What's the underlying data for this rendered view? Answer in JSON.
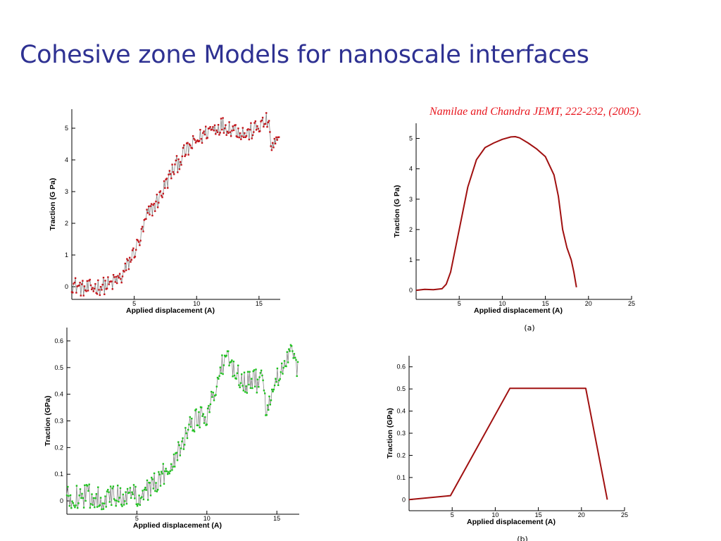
{
  "slide": {
    "title": "Cohesive zone Models for nanoscale interfaces",
    "citation": "Namilae and Chandra JEMT, 222-232, (2005)."
  },
  "colors": {
    "title": "#2e3192",
    "citation": "#e8141c",
    "md_red_series": "#c4161c",
    "md_green_series": "#1fc21f",
    "md_connector": "#888888",
    "model_curve": "#a01010"
  },
  "chart_data": [
    {
      "id": "top-left",
      "type": "scatter",
      "marker_color": "#c4161c",
      "connector_color": "#888888",
      "xlabel": "Applied displacement (A)",
      "ylabel": "Traction (G Pa)",
      "xlim": [
        0,
        16.7
      ],
      "ylim": [
        -0.4,
        5.6
      ],
      "xticks": [
        5,
        10,
        15
      ],
      "yticks": [
        0,
        1,
        2,
        3,
        4,
        5
      ],
      "grid": false,
      "series": [
        {
          "noisy": true,
          "x": [
            0,
            1,
            2,
            3,
            4,
            5,
            5.5,
            6,
            7,
            8,
            9,
            10,
            11,
            12,
            13,
            14,
            15,
            15.7,
            16,
            16.6
          ],
          "values": [
            0.1,
            -0.1,
            0.0,
            0.05,
            0.3,
            1.1,
            1.5,
            2.2,
            2.8,
            3.6,
            4.2,
            4.6,
            4.95,
            5.1,
            5.0,
            4.8,
            5.05,
            5.25,
            4.4,
            4.6
          ],
          "noise_amplitude": 0.28,
          "points": 230
        }
      ]
    },
    {
      "id": "top-right",
      "type": "line",
      "line_color": "#a01010",
      "xlabel": "Applied displacement (A)",
      "ylabel": "Traction (G Pa)",
      "caption": "(a)",
      "xlim": [
        0,
        25
      ],
      "ylim": [
        -0.3,
        5.5
      ],
      "xticks": [
        5,
        10,
        15,
        20,
        25
      ],
      "yticks": [
        0,
        1,
        2,
        3,
        4,
        5
      ],
      "grid": false,
      "series": [
        {
          "x": [
            0,
            1,
            2,
            3,
            3.5,
            4,
            5,
            6,
            7,
            8,
            9,
            10,
            11,
            11.5,
            12,
            13,
            14,
            15,
            16,
            16.5,
            17,
            17.5,
            18,
            18.3,
            18.6
          ],
          "values": [
            0,
            0.03,
            0.02,
            0.05,
            0.2,
            0.6,
            2.0,
            3.4,
            4.3,
            4.7,
            4.85,
            4.97,
            5.05,
            5.06,
            5.02,
            4.85,
            4.65,
            4.4,
            3.8,
            3.1,
            2.0,
            1.4,
            1.0,
            0.6,
            0.1
          ]
        }
      ]
    },
    {
      "id": "bottom-left",
      "type": "scatter",
      "marker_color": "#1fc21f",
      "connector_color": "#888888",
      "xlabel": "Applied displacement (A)",
      "ylabel": "Traction (GPa)",
      "xlim": [
        0,
        16.6
      ],
      "ylim": [
        -0.05,
        0.65
      ],
      "xticks": [
        5,
        10,
        15
      ],
      "yticks": [
        0,
        0.1,
        0.2,
        0.3,
        0.4,
        0.5,
        0.6
      ],
      "grid": false,
      "series": [
        {
          "noisy": true,
          "x": [
            0,
            1,
            2,
            3,
            4,
            5,
            6,
            7,
            7.5,
            8,
            8.5,
            9,
            10,
            10.5,
            11,
            11.5,
            12,
            12.5,
            13,
            14,
            14.2,
            14.5,
            15,
            15.5,
            16,
            16.5
          ],
          "values": [
            0.01,
            0.02,
            0.015,
            0.01,
            0.02,
            0.02,
            0.05,
            0.1,
            0.15,
            0.2,
            0.25,
            0.3,
            0.33,
            0.4,
            0.5,
            0.52,
            0.5,
            0.45,
            0.45,
            0.45,
            0.35,
            0.38,
            0.45,
            0.5,
            0.55,
            0.5
          ],
          "noise_amplitude": 0.045,
          "points": 260
        }
      ]
    },
    {
      "id": "bottom-right",
      "type": "line",
      "line_color": "#a01010",
      "xlabel": "Applied displacement (A)",
      "ylabel": "Traction (GPa)",
      "caption": "(b)",
      "xlim": [
        0,
        25
      ],
      "ylim": [
        -0.05,
        0.65
      ],
      "xticks": [
        5,
        10,
        15,
        20,
        25
      ],
      "yticks": [
        0,
        0.1,
        0.2,
        0.3,
        0.4,
        0.5,
        0.6
      ],
      "grid": false,
      "series": [
        {
          "x": [
            0,
            4.8,
            11.7,
            20.5,
            23
          ],
          "values": [
            0.0,
            0.018,
            0.503,
            0.503,
            0.0
          ]
        }
      ]
    }
  ]
}
